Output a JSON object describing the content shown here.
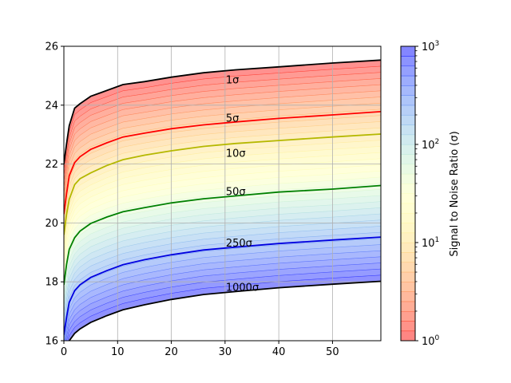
{
  "chart_data": {
    "type": "area",
    "title": "",
    "xlabel": "",
    "ylabel": "",
    "xlim": [
      0,
      59
    ],
    "ylim": [
      16,
      26
    ],
    "grid": true,
    "x_ticks": [
      0,
      10,
      20,
      30,
      40,
      50
    ],
    "y_ticks": [
      16,
      18,
      20,
      22,
      24,
      26
    ],
    "x": [
      0,
      0.5,
      1,
      2,
      3,
      5,
      8,
      11,
      15,
      20,
      26,
      32,
      40,
      50,
      59
    ],
    "series": [
      {
        "name": "1σ",
        "snr": 1,
        "color": "#000000",
        "values": [
          22.0,
          22.7,
          23.3,
          23.9,
          24.05,
          24.3,
          24.5,
          24.7,
          24.8,
          24.95,
          25.1,
          25.2,
          25.3,
          25.43,
          25.53
        ]
      },
      {
        "name": "5σ",
        "snr": 5,
        "color": "#ff0000",
        "values": [
          20.3,
          21.0,
          21.6,
          22.05,
          22.25,
          22.5,
          22.72,
          22.92,
          23.05,
          23.2,
          23.33,
          23.43,
          23.55,
          23.67,
          23.78
        ]
      },
      {
        "name": "10σ",
        "snr": 10,
        "color": "#b5b800",
        "values": [
          19.6,
          20.3,
          20.8,
          21.3,
          21.5,
          21.7,
          21.95,
          22.15,
          22.3,
          22.45,
          22.6,
          22.7,
          22.8,
          22.92,
          23.02
        ]
      },
      {
        "name": "50σ",
        "snr": 50,
        "color": "#008000",
        "values": [
          17.9,
          18.6,
          19.1,
          19.5,
          19.72,
          19.98,
          20.2,
          20.38,
          20.52,
          20.68,
          20.82,
          20.92,
          21.05,
          21.15,
          21.27
        ]
      },
      {
        "name": "250σ",
        "snr": 250,
        "color": "#0000e0",
        "values": [
          16.2,
          16.8,
          17.3,
          17.7,
          17.9,
          18.15,
          18.38,
          18.58,
          18.75,
          18.92,
          19.08,
          19.18,
          19.3,
          19.42,
          19.52
        ]
      },
      {
        "name": "1000σ",
        "snr": 1000,
        "color": "#000000",
        "values": [
          15.2,
          15.7,
          16.0,
          16.25,
          16.4,
          16.62,
          16.85,
          17.05,
          17.22,
          17.4,
          17.57,
          17.67,
          17.8,
          17.92,
          18.02
        ]
      }
    ],
    "colorbar": {
      "label": "Signal to Noise Ratio (σ)",
      "scale": "log",
      "range": [
        1,
        1000
      ],
      "tick_labels": [
        {
          "value": 1,
          "base": "10",
          "exp": "0"
        },
        {
          "value": 10,
          "base": "10",
          "exp": "1"
        },
        {
          "value": 100,
          "base": "10",
          "exp": "2"
        },
        {
          "value": 1000,
          "base": "10",
          "exp": "3"
        }
      ],
      "colormap": "rainbow"
    },
    "annotations": [
      {
        "text": "1σ",
        "x": 30,
        "y": 24.85
      },
      {
        "text": "5σ",
        "x": 30,
        "y": 23.55
      },
      {
        "text": "10σ",
        "x": 30,
        "y": 22.35
      },
      {
        "text": "50σ",
        "x": 30,
        "y": 21.05
      },
      {
        "text": "250σ",
        "x": 30,
        "y": 19.3
      },
      {
        "text": "1000σ",
        "x": 30,
        "y": 17.8
      }
    ]
  }
}
